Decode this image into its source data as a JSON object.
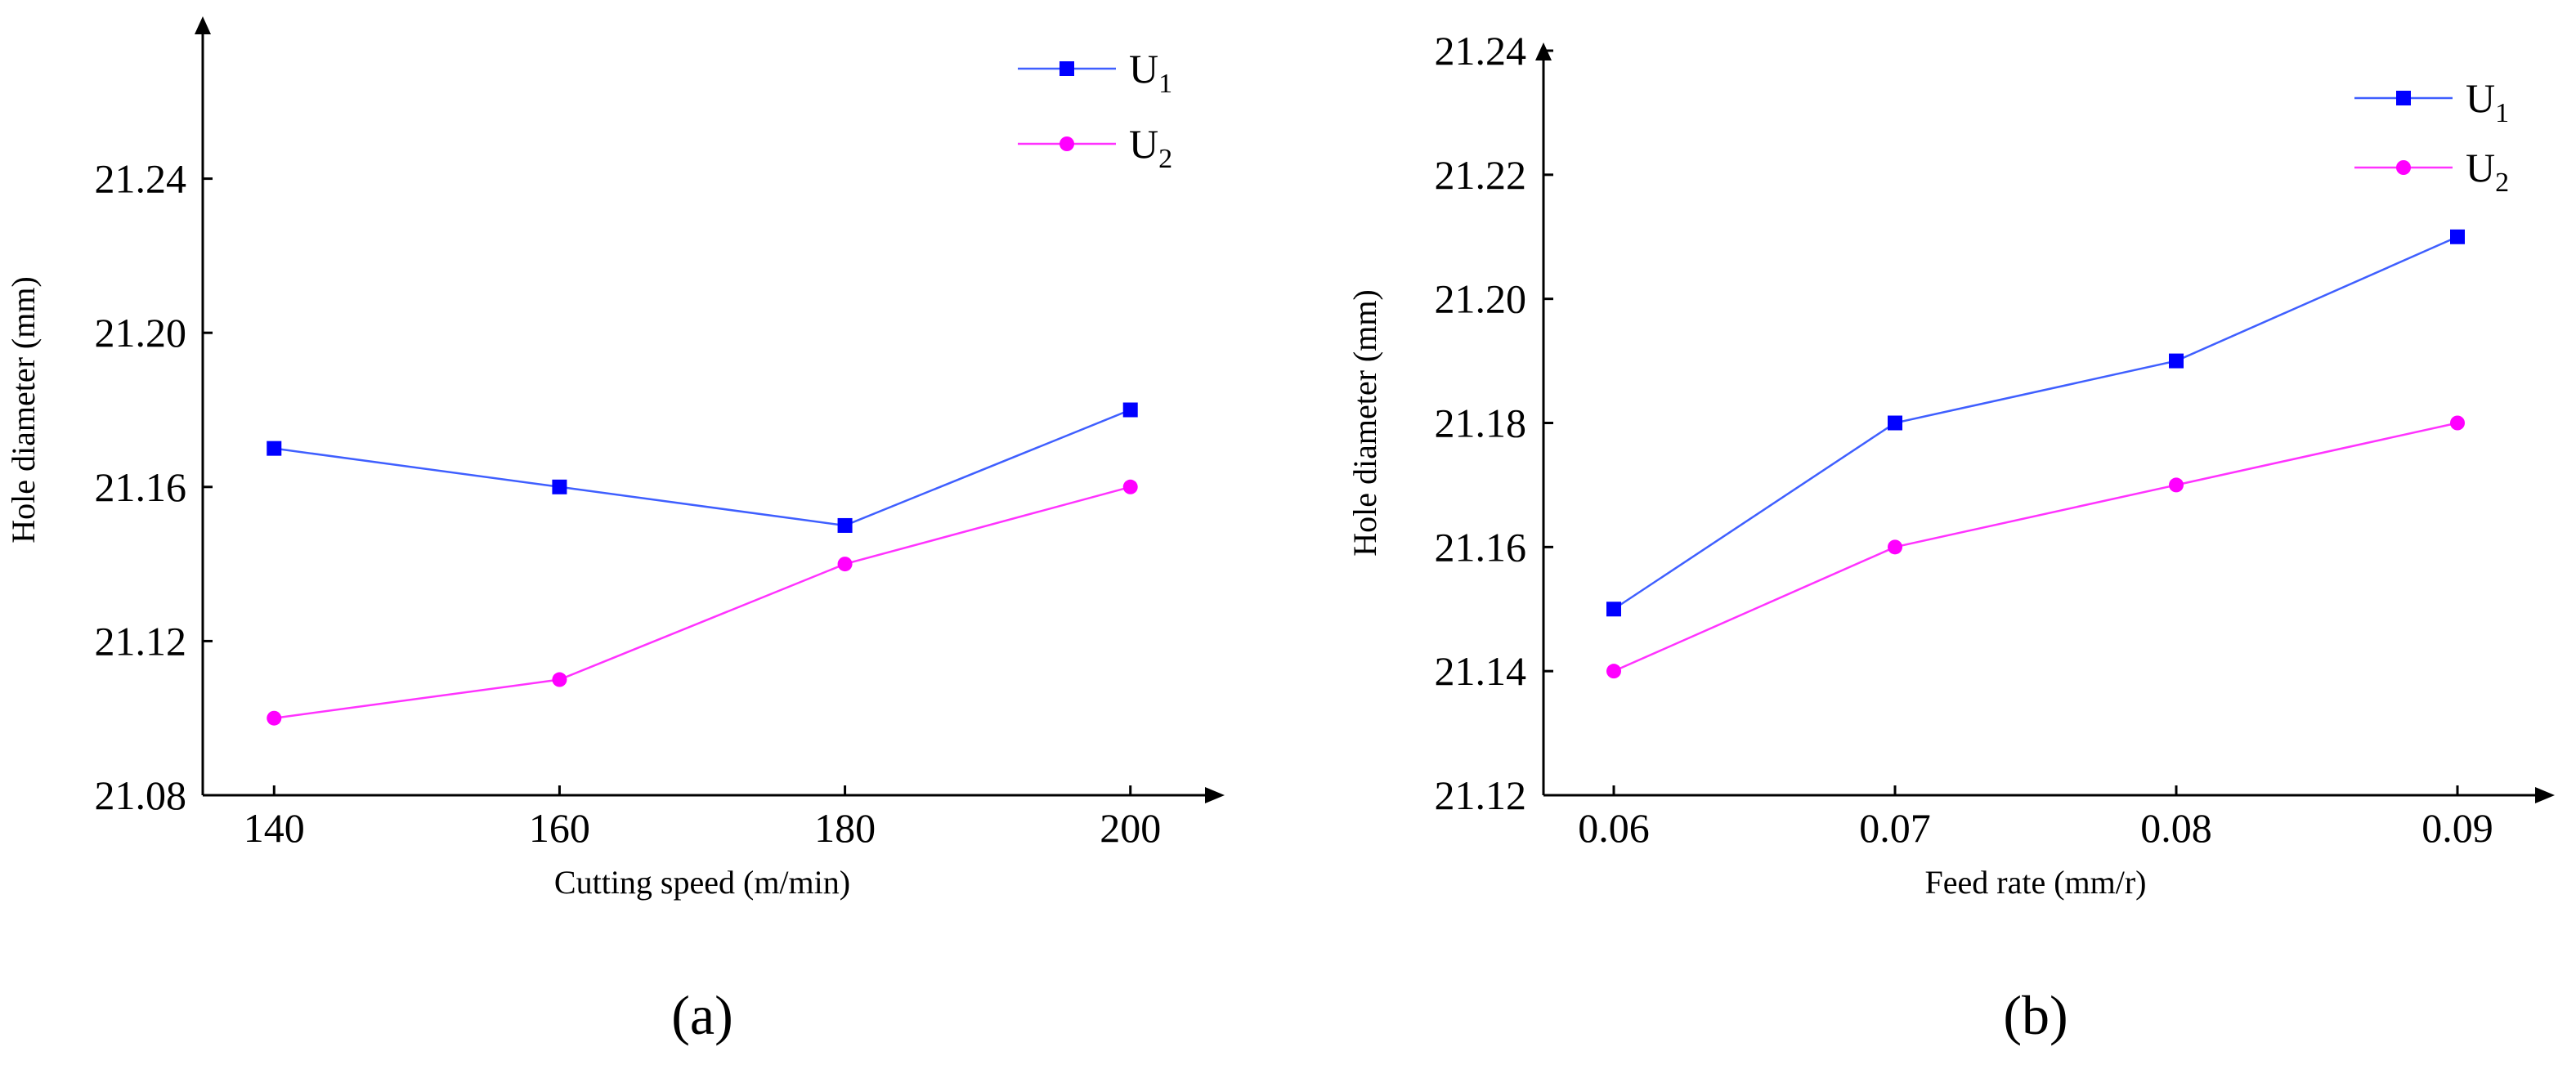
{
  "colors": {
    "u1": "#0000ff",
    "u2": "#ff00ff",
    "u1_line": "#3f5fff",
    "u2_line": "#ff33ff",
    "axis": "#000000"
  },
  "panel_labels": [
    "(a)",
    "(b)"
  ],
  "chart_data": [
    {
      "type": "line",
      "panel": "(a)",
      "title": "",
      "xlabel": "Cutting speed (m/min)",
      "ylabel": "Hole diameter (mm)",
      "categories": [
        "140",
        "160",
        "180",
        "200"
      ],
      "xlim": [
        135,
        205
      ],
      "ylim": [
        21.08,
        21.28
      ],
      "yticks": [
        21.08,
        21.12,
        21.16,
        21.2,
        21.24
      ],
      "ytick_labels": [
        "21.08",
        "21.12",
        "21.16",
        "21.20",
        "21.24"
      ],
      "x": [
        140,
        160,
        180,
        200
      ],
      "series": [
        {
          "name": "U1",
          "label_main": "U",
          "label_sub": "1",
          "marker": "square",
          "values": [
            21.17,
            21.16,
            21.15,
            21.18
          ]
        },
        {
          "name": "U2",
          "label_main": "U",
          "label_sub": "2",
          "marker": "circle",
          "values": [
            21.1,
            21.11,
            21.14,
            21.16
          ]
        }
      ],
      "legend": "top-right",
      "grid": false
    },
    {
      "type": "line",
      "panel": "(b)",
      "title": "",
      "xlabel": "Feed rate (mm/r)",
      "ylabel": "Hole diameter (mm)",
      "categories": [
        "0.06",
        "0.07",
        "0.08",
        "0.09"
      ],
      "xlim": [
        0.0575,
        0.0925
      ],
      "ylim": [
        21.12,
        21.24
      ],
      "yticks": [
        21.12,
        21.14,
        21.16,
        21.18,
        21.2,
        21.22,
        21.24
      ],
      "ytick_labels": [
        "21.12",
        "21.14",
        "21.16",
        "21.18",
        "21.20",
        "21.22",
        "21.24"
      ],
      "x": [
        0.06,
        0.07,
        0.08,
        0.09
      ],
      "series": [
        {
          "name": "U1",
          "label_main": "U",
          "label_sub": "1",
          "marker": "square",
          "values": [
            21.15,
            21.18,
            21.19,
            21.21
          ]
        },
        {
          "name": "U2",
          "label_main": "U",
          "label_sub": "2",
          "marker": "circle",
          "values": [
            21.14,
            21.16,
            21.17,
            21.18
          ]
        }
      ],
      "legend": "top-right",
      "grid": false
    }
  ]
}
